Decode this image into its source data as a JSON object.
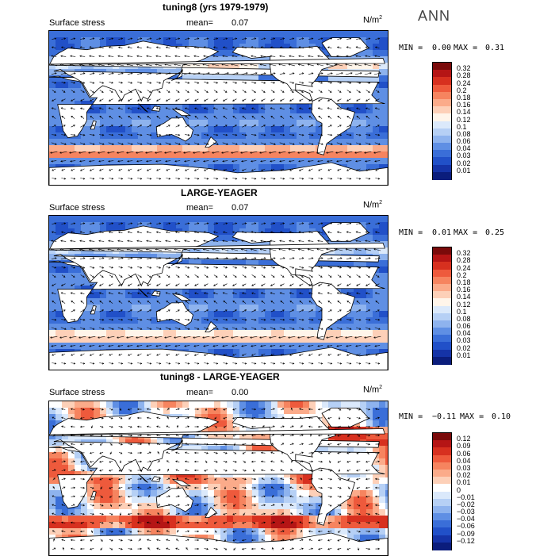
{
  "season": "ANN",
  "colormaps": {
    "red_blue_16": [
      "#7a0a0a",
      "#b51515",
      "#d7301f",
      "#ee5a3c",
      "#f6845f",
      "#fbab8a",
      "#fdd0b8",
      "#fff5ea",
      "#dbe9fb",
      "#b6d0f5",
      "#8eb3ee",
      "#5f8fe4",
      "#3a6ed8",
      "#2150c8",
      "#1533a7",
      "#0b1d7c"
    ],
    "red_blue_diff": [
      "#7a0a0a",
      "#b51515",
      "#d7301f",
      "#ee5a3c",
      "#f6845f",
      "#fbab8a",
      "#fdd0b8",
      "#ffffff",
      "#dbe9fb",
      "#b6d0f5",
      "#8eb3ee",
      "#5f8fe4",
      "#3a6ed8",
      "#2150c8",
      "#1533a7",
      "#0b1d7c"
    ]
  },
  "chart_data": [
    {
      "type": "heatmap",
      "title": "tuning8 (yrs 1979-1979)",
      "variable": "Surface stress",
      "mean_label": "mean=",
      "mean": "0.07",
      "units": "N/m",
      "units_exp": "2",
      "min_label": "MIN =",
      "min": "0.00",
      "max_label": "MAX =",
      "max": "0.31",
      "colorbar_ticks": [
        "0.32",
        "0.28",
        "0.24",
        "0.2",
        "0.18",
        "0.16",
        "0.14",
        "0.12",
        "0.1",
        "0.08",
        "0.06",
        "0.04",
        "0.03",
        "0.02",
        "0.01"
      ],
      "colormap": "red_blue_16",
      "overlay": "wind stress vectors"
    },
    {
      "type": "heatmap",
      "title": "LARGE-YEAGER",
      "variable": "Surface stress",
      "mean_label": "mean=",
      "mean": "0.07",
      "units": "N/m",
      "units_exp": "2",
      "min_label": "MIN =",
      "min": "0.01",
      "max_label": "MAX =",
      "max": "0.25",
      "colorbar_ticks": [
        "0.32",
        "0.28",
        "0.24",
        "0.2",
        "0.18",
        "0.16",
        "0.14",
        "0.12",
        "0.1",
        "0.08",
        "0.06",
        "0.04",
        "0.03",
        "0.02",
        "0.01"
      ],
      "colormap": "red_blue_16",
      "overlay": "wind stress vectors"
    },
    {
      "type": "heatmap",
      "title": "tuning8 - LARGE-YEAGER",
      "variable": "Surface stress",
      "mean_label": "mean=",
      "mean": "0.00",
      "units": "N/m",
      "units_exp": "2",
      "min_label": "MIN =",
      "min": "−0.11",
      "max_label": "MAX =",
      "max": "0.10",
      "colorbar_ticks": [
        "0.12",
        "0.09",
        "0.06",
        "0.04",
        "0.03",
        "0.02",
        "0.01",
        "0",
        "−0.01",
        "−0.02",
        "−0.03",
        "−0.04",
        "−0.06",
        "−0.09",
        "−0.12"
      ],
      "colormap": "red_blue_diff",
      "overlay": "wind stress vector differences"
    }
  ]
}
